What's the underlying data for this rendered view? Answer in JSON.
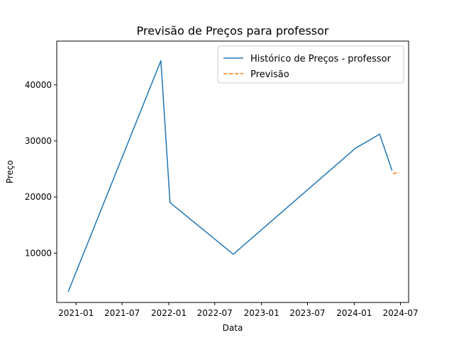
{
  "chart_data": {
    "type": "line",
    "title": "Previsão de Preços para professor",
    "xlabel": "Data",
    "ylabel": "Preço",
    "x_axis_type": "date",
    "xlim": [
      "2020-10-17",
      "2024-08-02"
    ],
    "ylim": [
      1200,
      47800
    ],
    "x_ticks": [
      {
        "value": "2021-01-01",
        "label": "2021-01"
      },
      {
        "value": "2021-07-01",
        "label": "2021-07"
      },
      {
        "value": "2022-01-01",
        "label": "2022-01"
      },
      {
        "value": "2022-07-01",
        "label": "2022-07"
      },
      {
        "value": "2023-01-01",
        "label": "2023-01"
      },
      {
        "value": "2023-07-01",
        "label": "2023-07"
      },
      {
        "value": "2024-01-01",
        "label": "2024-01"
      },
      {
        "value": "2024-07-01",
        "label": "2024-07"
      }
    ],
    "y_ticks": [
      {
        "value": 10000,
        "label": "10000"
      },
      {
        "value": 20000,
        "label": "20000"
      },
      {
        "value": 30000,
        "label": "30000"
      },
      {
        "value": 40000,
        "label": "40000"
      }
    ],
    "grid": false,
    "legend_position": "top-right",
    "series": [
      {
        "name": "Histórico de Preços - professor",
        "color": "#1f77b4",
        "style": "solid",
        "points": [
          {
            "x": "2020-12-01",
            "y": 3100
          },
          {
            "x": "2021-12-01",
            "y": 44300
          },
          {
            "x": "2022-01-06",
            "y": 19000
          },
          {
            "x": "2022-09-12",
            "y": 9800
          },
          {
            "x": "2024-01-06",
            "y": 28700
          },
          {
            "x": "2024-04-10",
            "y": 31200
          },
          {
            "x": "2024-05-29",
            "y": 24700
          }
        ]
      },
      {
        "name": "Previsão",
        "color": "#ff7f0e",
        "style": "dashed",
        "points": [
          {
            "x": "2024-06-01",
            "y": 24200
          },
          {
            "x": "2024-06-25",
            "y": 24400
          }
        ]
      }
    ]
  }
}
